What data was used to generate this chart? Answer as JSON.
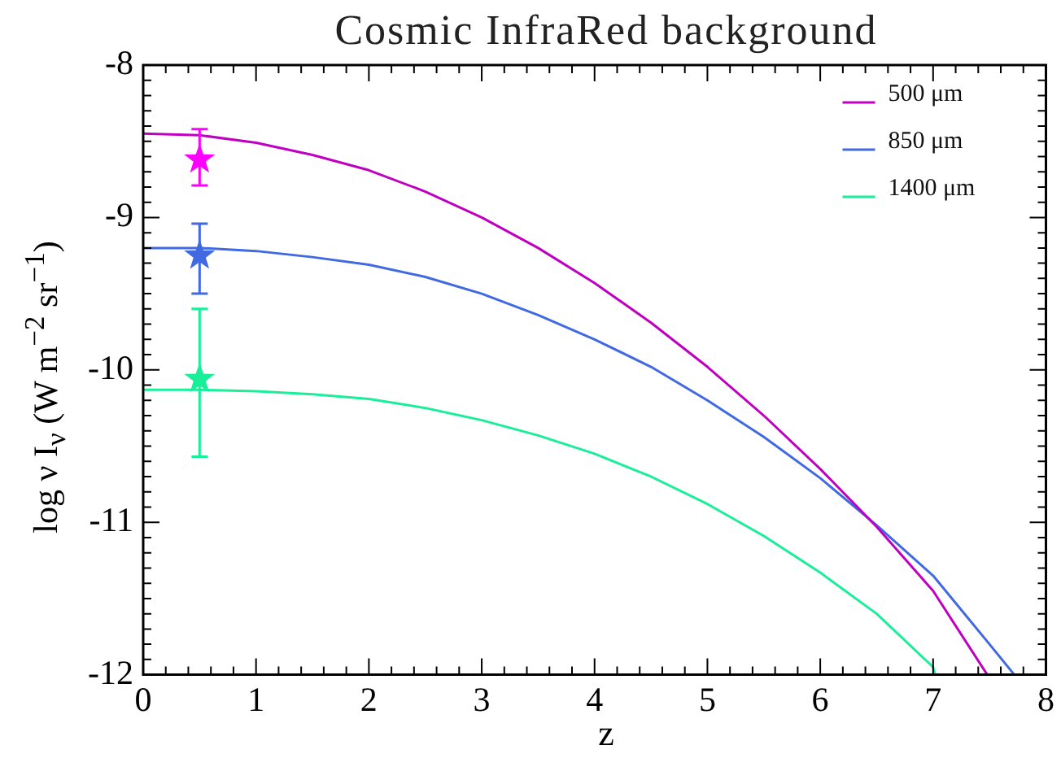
{
  "chart_data": {
    "type": "line",
    "title": "Cosmic InfraRed background",
    "xlabel": "z",
    "ylabel": "log ν I$_{ν}$ (W m$^{−2}$ sr$^{−1}$)",
    "xlim": [
      0,
      8
    ],
    "ylim": [
      -12,
      -8
    ],
    "xticks": [
      0,
      {
        "value": 0.2,
        "label": null
      },
      {
        "value": 0.4,
        "label": null
      },
      {
        "value": 0.6,
        "label": null
      },
      {
        "value": 0.8,
        "label": null
      },
      1,
      {
        "value": 1.2,
        "label": null
      },
      {
        "value": 1.4,
        "label": null
      },
      {
        "value": 1.6,
        "label": null
      },
      {
        "value": 1.8,
        "label": null
      },
      2,
      {
        "value": 2.2,
        "label": null
      },
      {
        "value": 2.4,
        "label": null
      },
      {
        "value": 2.6,
        "label": null
      },
      {
        "value": 2.8,
        "label": null
      },
      3,
      {
        "value": 3.2,
        "label": null
      },
      {
        "value": 3.4,
        "label": null
      },
      {
        "value": 3.6,
        "label": null
      },
      {
        "value": 3.8,
        "label": null
      },
      4,
      {
        "value": 4.2,
        "label": null
      },
      {
        "value": 4.4,
        "label": null
      },
      {
        "value": 4.6,
        "label": null
      },
      {
        "value": 4.8,
        "label": null
      },
      5,
      {
        "value": 5.2,
        "label": null
      },
      {
        "value": 5.4,
        "label": null
      },
      {
        "value": 5.6,
        "label": null
      },
      {
        "value": 5.8,
        "label": null
      },
      6,
      {
        "value": 6.2,
        "label": null
      },
      {
        "value": 6.4,
        "label": null
      },
      {
        "value": 6.6,
        "label": null
      },
      {
        "value": 6.8,
        "label": null
      },
      7,
      {
        "value": 7.2,
        "label": null
      },
      {
        "value": 7.4,
        "label": null
      },
      {
        "value": 7.6,
        "label": null
      },
      {
        "value": 7.8,
        "label": null
      },
      8
    ],
    "yticks": [
      -12,
      {
        "value": -11.9,
        "label": null
      },
      {
        "value": -11.8,
        "label": null
      },
      {
        "value": -11.7,
        "label": null
      },
      {
        "value": -11.6,
        "label": null
      },
      {
        "value": -11.5,
        "label": null
      },
      {
        "value": -11.4,
        "label": null
      },
      {
        "value": -11.3,
        "label": null
      },
      {
        "value": -11.2,
        "label": null
      },
      {
        "value": -11.1,
        "label": null
      },
      -11,
      {
        "value": -10.9,
        "label": null
      },
      {
        "value": -10.8,
        "label": null
      },
      {
        "value": -10.7,
        "label": null
      },
      {
        "value": -10.6,
        "label": null
      },
      {
        "value": -10.5,
        "label": null
      },
      {
        "value": -10.4,
        "label": null
      },
      {
        "value": -10.3,
        "label": null
      },
      {
        "value": -10.2,
        "label": null
      },
      {
        "value": -10.1,
        "label": null
      },
      -10,
      {
        "value": -9.9,
        "label": null
      },
      {
        "value": -9.8,
        "label": null
      },
      {
        "value": -9.7,
        "label": null
      },
      {
        "value": -9.6,
        "label": null
      },
      {
        "value": -9.5,
        "label": null
      },
      {
        "value": -9.4,
        "label": null
      },
      {
        "value": -9.3,
        "label": null
      },
      {
        "value": -9.2,
        "label": null
      },
      {
        "value": -9.1,
        "label": null
      },
      -9,
      {
        "value": -8.9,
        "label": null
      },
      {
        "value": -8.8,
        "label": null
      },
      {
        "value": -8.7,
        "label": null
      },
      {
        "value": -8.6,
        "label": null
      },
      {
        "value": -8.5,
        "label": null
      },
      {
        "value": -8.4,
        "label": null
      },
      {
        "value": -8.3,
        "label": null
      },
      {
        "value": -8.2,
        "label": null
      },
      {
        "value": -8.1,
        "label": null
      },
      -8
    ],
    "grid": false,
    "legend": "top right",
    "marker": "none",
    "line_style": "solid",
    "series": [
      {
        "name": "500 μm",
        "color": "#c000c0",
        "x": [
          0,
          0.5,
          1,
          1.5,
          2,
          2.5,
          3,
          3.5,
          4,
          4.5,
          5,
          5.5,
          6,
          6.5,
          7,
          7.48
        ],
        "values": [
          -8.45,
          -8.46,
          -8.51,
          -8.59,
          -8.69,
          -8.83,
          -9.0,
          -9.2,
          -9.43,
          -9.69,
          -9.98,
          -10.3,
          -10.65,
          -11.03,
          -11.45,
          -12
        ]
      },
      {
        "name": "850 μm",
        "color": "#4169e1",
        "x": [
          0,
          0.5,
          1,
          1.5,
          2,
          2.5,
          3,
          3.5,
          4,
          4.5,
          5,
          5.5,
          6,
          6.5,
          7,
          7.5,
          7.72
        ],
        "values": [
          -9.2,
          -9.2,
          -9.22,
          -9.26,
          -9.31,
          -9.39,
          -9.5,
          -9.64,
          -9.8,
          -9.98,
          -10.2,
          -10.44,
          -10.71,
          -11.02,
          -11.35,
          -11.8,
          -12
        ]
      },
      {
        "name": "1400 μm",
        "color": "#19ee99",
        "x": [
          0,
          0.5,
          1,
          1.5,
          2,
          2.5,
          3,
          3.5,
          4,
          4.5,
          5,
          5.5,
          6,
          6.5,
          7,
          7.02
        ],
        "values": [
          -10.13,
          -10.13,
          -10.14,
          -10.16,
          -10.19,
          -10.25,
          -10.33,
          -10.43,
          -10.55,
          -10.7,
          -10.88,
          -11.09,
          -11.33,
          -11.6,
          -11.95,
          -12
        ]
      },
      {
        "type": "scatter",
        "marker": "star",
        "color": "#ff00ff",
        "x": [
          0.5
        ],
        "values": [
          -8.62
        ],
        "errors": [
          [
            -8.79,
            -8.42
          ]
        ]
      },
      {
        "type": "scatter",
        "marker": "star",
        "color": "#4169e1",
        "x": [
          0.5
        ],
        "values": [
          -9.25
        ],
        "errors": [
          [
            -9.5,
            -9.04
          ]
        ]
      },
      {
        "type": "scatter",
        "marker": "star",
        "color": "#19ee99",
        "x": [
          0.5
        ],
        "values": [
          -10.06
        ],
        "errors": [
          [
            -10.57,
            -9.6
          ]
        ]
      }
    ]
  }
}
